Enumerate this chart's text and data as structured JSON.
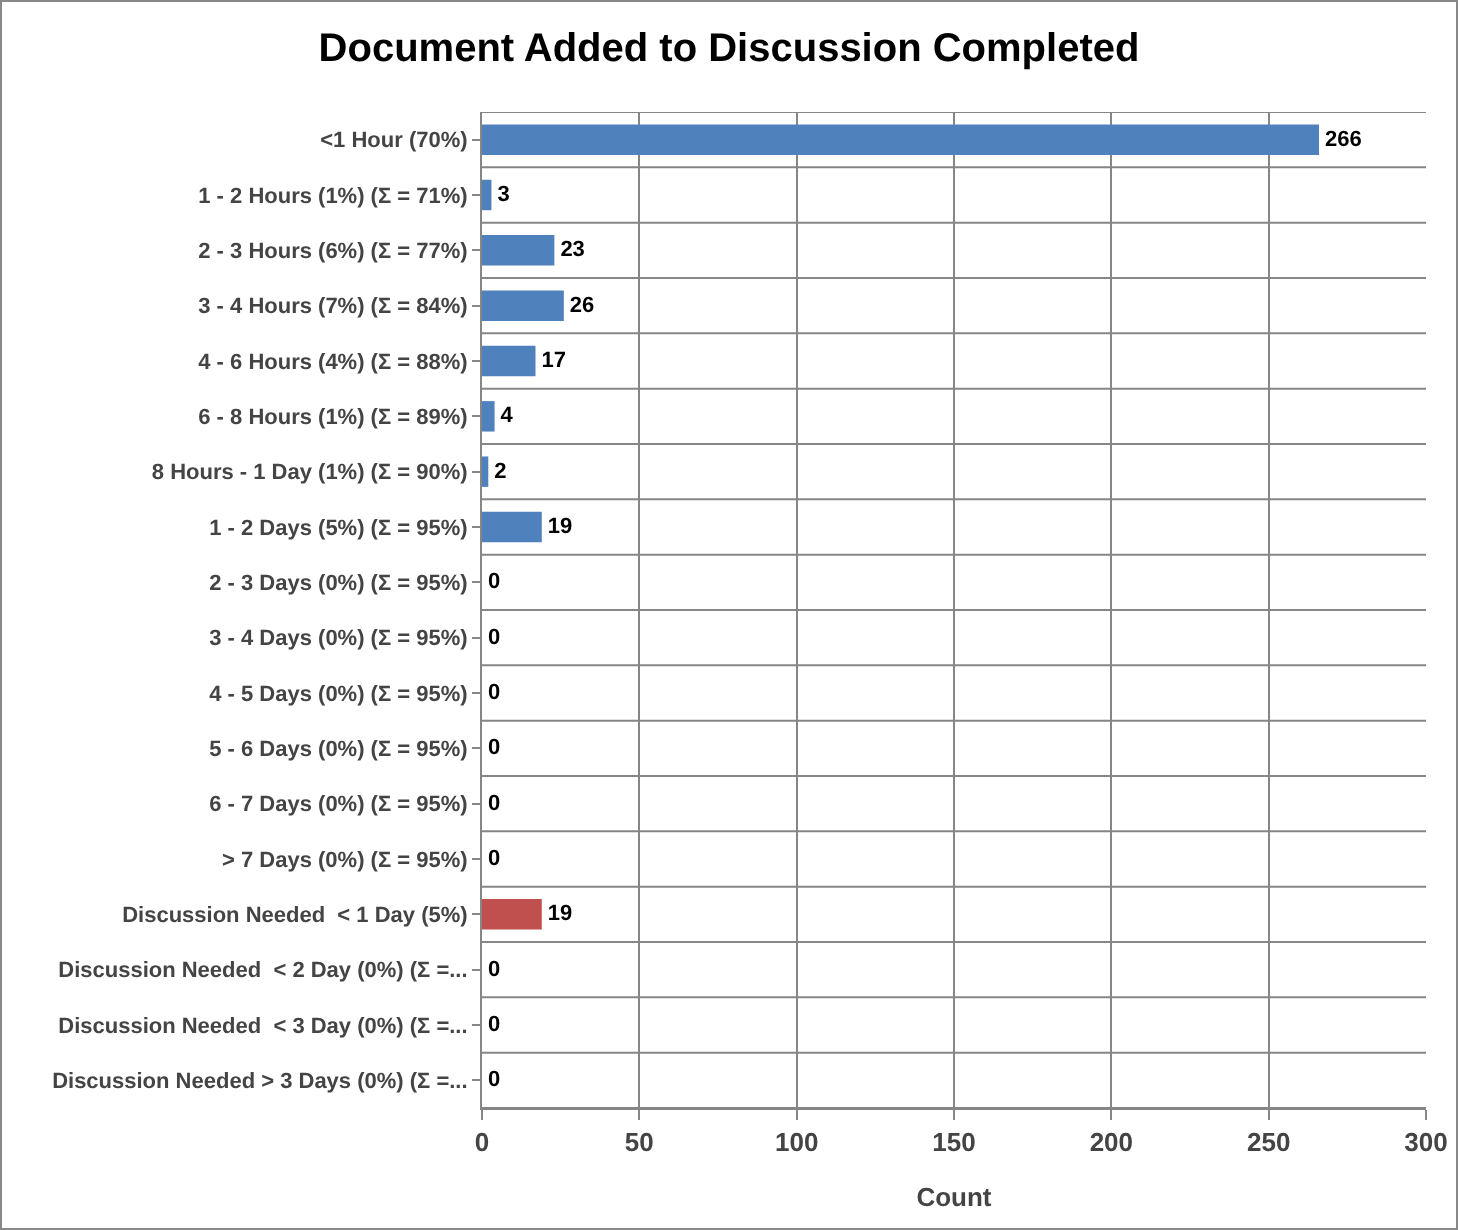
{
  "chart_data": {
    "type": "bar",
    "orientation": "horizontal",
    "title": "Document Added to Discussion Completed",
    "xlabel": "Count",
    "categories": [
      "<1 Hour (70%)",
      "1 - 2 Hours (1%) (Σ = 71%)",
      "2 - 3 Hours (6%) (Σ = 77%)",
      "3 - 4 Hours (7%) (Σ = 84%)",
      "4 - 6 Hours (4%) (Σ = 88%)",
      "6 - 8 Hours (1%) (Σ = 89%)",
      "8 Hours - 1 Day (1%) (Σ = 90%)",
      "1 - 2 Days (5%) (Σ = 95%)",
      "2 - 3 Days (0%) (Σ = 95%)",
      "3 - 4 Days (0%) (Σ = 95%)",
      "4 - 5 Days (0%) (Σ = 95%)",
      "5 - 6 Days (0%) (Σ = 95%)",
      "6 - 7 Days (0%) (Σ = 95%)",
      "> 7 Days (0%) (Σ = 95%)",
      "Discussion Needed  < 1 Day (5%)",
      "Discussion Needed  < 2 Day (0%) (Σ =...",
      "Discussion Needed  < 3 Day (0%) (Σ =...",
      "Discussion Needed > 3 Days (0%) (Σ =..."
    ],
    "values": [
      266,
      3,
      23,
      26,
      17,
      4,
      2,
      19,
      0,
      0,
      0,
      0,
      0,
      0,
      19,
      0,
      0,
      0
    ],
    "colors": [
      "#4f81bd",
      "#4f81bd",
      "#4f81bd",
      "#4f81bd",
      "#4f81bd",
      "#4f81bd",
      "#4f81bd",
      "#4f81bd",
      "#4f81bd",
      "#4f81bd",
      "#4f81bd",
      "#4f81bd",
      "#4f81bd",
      "#4f81bd",
      "#c0504d",
      "#4f81bd",
      "#4f81bd",
      "#4f81bd"
    ],
    "xlim": [
      0,
      300
    ],
    "xticks": [
      0,
      50,
      100,
      150,
      200,
      250,
      300
    ],
    "grid": true,
    "data_labels": true,
    "legend": false
  }
}
